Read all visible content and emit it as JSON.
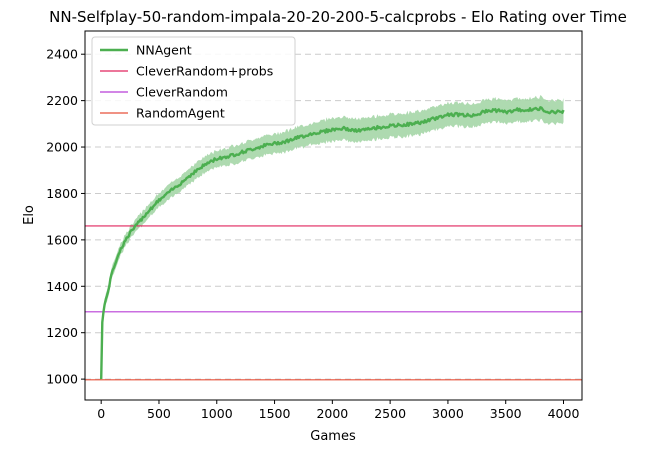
{
  "chart_data": {
    "type": "line",
    "title": "NN-Selfplay-50-random-impala-20-20-200-5-calcprobs - Elo Rating over Time",
    "xlabel": "Games",
    "ylabel": "Elo",
    "xlim": [
      -140,
      4160
    ],
    "ylim": [
      910,
      2500
    ],
    "xticks": [
      0,
      500,
      1000,
      1500,
      2000,
      2500,
      3000,
      3500,
      4000
    ],
    "yticks": [
      1000,
      1200,
      1400,
      1600,
      1800,
      2000,
      2200,
      2400
    ],
    "grid": "y-dashed",
    "legend_position": "top-left",
    "series": [
      {
        "name": "NNAgent",
        "color": "#4caf50",
        "band_color": "#a5d6a7",
        "x": [
          0,
          10,
          25,
          50,
          100,
          150,
          200,
          250,
          300,
          400,
          500,
          600,
          700,
          800,
          900,
          1000,
          1100,
          1200,
          1300,
          1400,
          1500,
          1600,
          1700,
          1800,
          1900,
          2000,
          2100,
          2200,
          2300,
          2400,
          2500,
          2600,
          2700,
          2800,
          2900,
          3000,
          3100,
          3200,
          3300,
          3400,
          3500,
          3600,
          3700,
          3800,
          3900,
          4000
        ],
        "y": [
          1000,
          1250,
          1310,
          1360,
          1470,
          1540,
          1590,
          1630,
          1660,
          1720,
          1770,
          1810,
          1850,
          1890,
          1925,
          1950,
          1960,
          1975,
          1990,
          2005,
          2015,
          2025,
          2040,
          2055,
          2065,
          2075,
          2080,
          2070,
          2075,
          2085,
          2090,
          2095,
          2100,
          2110,
          2125,
          2140,
          2140,
          2135,
          2150,
          2160,
          2150,
          2160,
          2160,
          2165,
          2150,
          2155
        ],
        "band_halfwidth": [
          0,
          15,
          20,
          25,
          25,
          25,
          25,
          25,
          28,
          30,
          30,
          32,
          32,
          35,
          35,
          35,
          38,
          40,
          40,
          42,
          42,
          45,
          45,
          45,
          48,
          50,
          50,
          50,
          50,
          50,
          50,
          50,
          50,
          50,
          50,
          50,
          50,
          50,
          50,
          50,
          50,
          50,
          50,
          50,
          50,
          50
        ]
      },
      {
        "name": "CleverRandom+probs",
        "type": "hline",
        "y": 1660,
        "color": "#e0245e"
      },
      {
        "name": "CleverRandom",
        "type": "hline",
        "y": 1290,
        "color": "#b83fd6"
      },
      {
        "name": "RandomAgent",
        "type": "hline",
        "y": 997,
        "color": "#e8503a"
      }
    ]
  }
}
